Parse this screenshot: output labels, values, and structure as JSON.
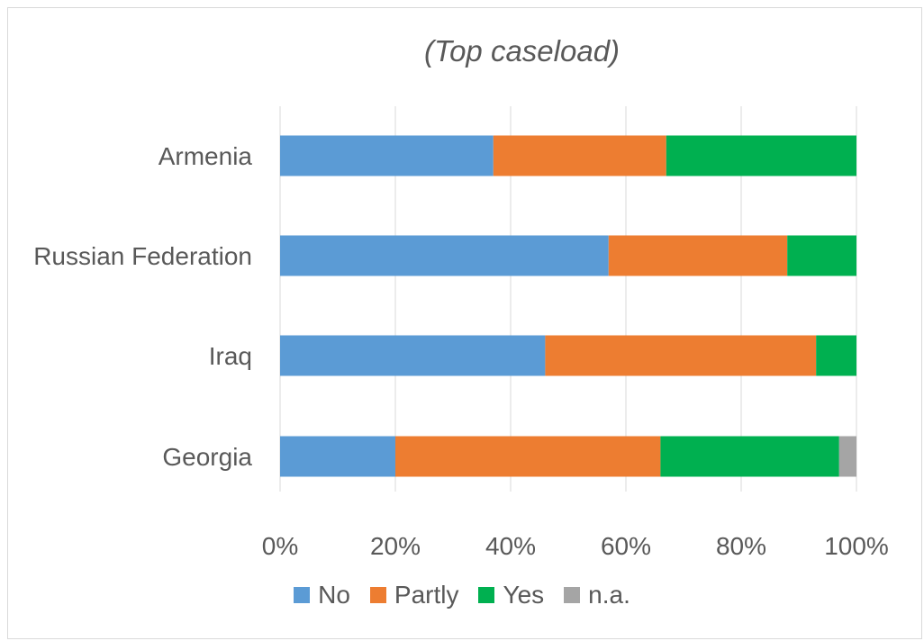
{
  "chart_data": {
    "type": "bar",
    "orientation": "horizontal",
    "stacked": true,
    "percent_stacked": true,
    "title": "(Top caseload)",
    "categories": [
      "Armenia",
      "Russian Federation",
      "Iraq",
      "Georgia"
    ],
    "series": [
      {
        "name": "No",
        "color": "#5b9bd5",
        "values": [
          37,
          57,
          46,
          20
        ]
      },
      {
        "name": "Partly",
        "color": "#ed7d31",
        "values": [
          30,
          31,
          47,
          46
        ]
      },
      {
        "name": "Yes",
        "color": "#00b050",
        "values": [
          33,
          12,
          7,
          31
        ]
      },
      {
        "name": "n.a.",
        "color": "#a5a5a5",
        "values": [
          0,
          0,
          0,
          3
        ]
      }
    ],
    "xlim": [
      0,
      100
    ],
    "x_ticks": [
      "0%",
      "20%",
      "40%",
      "60%",
      "80%",
      "100%"
    ],
    "grid": true,
    "legend_position": "bottom"
  }
}
